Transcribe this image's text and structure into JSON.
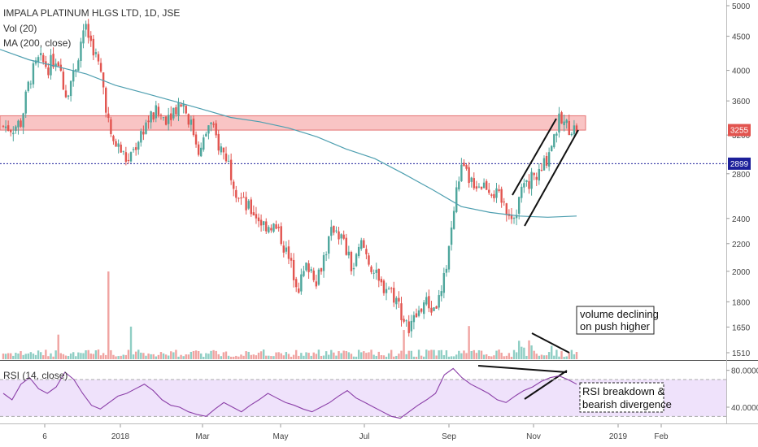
{
  "header": {
    "symbol": "IMPALA PLATINUM HLGS LTD, 1D, JSE",
    "volume_indicator": "Vol (20)",
    "ma_indicator": "MA (200, close)"
  },
  "colors": {
    "up": "#4ea69c",
    "down": "#e2544f",
    "vol_up": "#8fcec4",
    "vol_down": "#f0a3a1",
    "ma": "#4e9fb0",
    "rsi": "#8b3fa8",
    "rsi_band": "#efe2fb",
    "zone": "#f9c4c4",
    "level_line": "#1c1f9a",
    "price_label_bg": "#e2544f",
    "level_label_bg": "#1c1f9a"
  },
  "chart_data": [
    {
      "type": "candlestick",
      "title": "IMPALA PLATINUM HLGS LTD, 1D, JSE",
      "x_ticks": [
        "6",
        "2018",
        "Mar",
        "May",
        "Jul",
        "Sep",
        "Nov",
        "2019",
        "Feb"
      ],
      "y_ticks": [
        5000,
        4500,
        4000,
        3600,
        3200,
        2800,
        2400,
        2200,
        2000,
        1800,
        1650,
        1510
      ],
      "y_scale": "log",
      "ylim": [
        1480,
        5100
      ],
      "current_price_label": "3255",
      "horizontal_level_label": "2899",
      "horizontal_level": 2899,
      "resistance_zone": [
        3255,
        3420
      ],
      "price_path": [
        [
          "Dec 2017",
          3300
        ],
        [
          "",
          3280
        ],
        [
          "",
          3350
        ],
        [
          "",
          3900
        ],
        [
          "",
          4150
        ],
        [
          "",
          4050
        ],
        [
          "",
          4200
        ],
        [
          "",
          3700
        ],
        [
          "",
          4000
        ],
        [
          "",
          4650
        ],
        [
          "",
          4350
        ],
        [
          "",
          3900
        ],
        [
          "",
          3150
        ],
        [
          "",
          3050
        ],
        [
          "",
          2900
        ],
        [
          "2018",
          3150
        ],
        [
          "",
          3350
        ],
        [
          "",
          3450
        ],
        [
          "",
          3400
        ],
        [
          "",
          3500
        ],
        [
          "",
          3600
        ],
        [
          "",
          3300
        ],
        [
          "",
          3000
        ],
        [
          "",
          3350
        ],
        [
          "",
          3100
        ],
        [
          "Mar",
          2950
        ],
        [
          "",
          2650
        ],
        [
          "",
          2500
        ],
        [
          "",
          2450
        ],
        [
          "",
          2350
        ],
        [
          "",
          2350
        ],
        [
          "",
          2250
        ],
        [
          "May",
          2050
        ],
        [
          "",
          1900
        ],
        [
          "",
          2050
        ],
        [
          "",
          1950
        ],
        [
          "",
          2150
        ],
        [
          "",
          2350
        ],
        [
          "",
          2200
        ],
        [
          "",
          2000
        ],
        [
          "Jul",
          2200
        ],
        [
          "",
          2050
        ],
        [
          "",
          1900
        ],
        [
          "",
          1900
        ],
        [
          "",
          1800
        ],
        [
          "",
          1650
        ],
        [
          "",
          1700
        ],
        [
          "",
          1800
        ],
        [
          "",
          1750
        ],
        [
          "",
          1850
        ],
        [
          "Sep",
          2300
        ],
        [
          "",
          2850
        ],
        [
          "",
          2750
        ],
        [
          "",
          2700
        ],
        [
          "",
          2700
        ],
        [
          "",
          2600
        ],
        [
          "",
          2500
        ],
        [
          "",
          2420
        ],
        [
          "Nov",
          2650
        ],
        [
          "",
          2750
        ],
        [
          "",
          2800
        ],
        [
          "",
          3050
        ],
        [
          "",
          3350
        ],
        [
          "",
          3300
        ],
        [
          "",
          3255
        ]
      ],
      "ma_200_path": [
        4300,
        4150,
        4050,
        3950,
        3800,
        3700,
        3600,
        3500,
        3400,
        3350,
        3280,
        3180,
        3050,
        2950,
        2800,
        2650,
        2500,
        2450,
        2420,
        2410,
        2420
      ],
      "annotations": [
        {
          "text": "volume declining\non push higher"
        },
        {
          "text": "RSI breakdown &\nbearish divergence"
        }
      ]
    },
    {
      "type": "bar",
      "title": "Vol (20)",
      "note": "daily volume bars along the bottom of the price pane"
    },
    {
      "type": "line",
      "title": "RSI (14, close)",
      "y_ticks": [
        "80.0000",
        "40.0000"
      ],
      "ylim": [
        25,
        85
      ],
      "overbought": 70,
      "oversold": 30,
      "values": [
        55,
        48,
        65,
        72,
        60,
        55,
        62,
        78,
        70,
        55,
        42,
        38,
        45,
        52,
        55,
        60,
        65,
        58,
        48,
        42,
        40,
        35,
        32,
        30,
        38,
        45,
        40,
        35,
        42,
        48,
        55,
        50,
        45,
        42,
        38,
        35,
        40,
        45,
        52,
        58,
        50,
        45,
        40,
        35,
        30,
        28,
        35,
        42,
        48,
        55,
        75,
        82,
        72,
        65,
        60,
        55,
        48,
        45,
        52,
        58,
        62,
        68,
        72,
        74,
        70,
        65
      ]
    }
  ]
}
